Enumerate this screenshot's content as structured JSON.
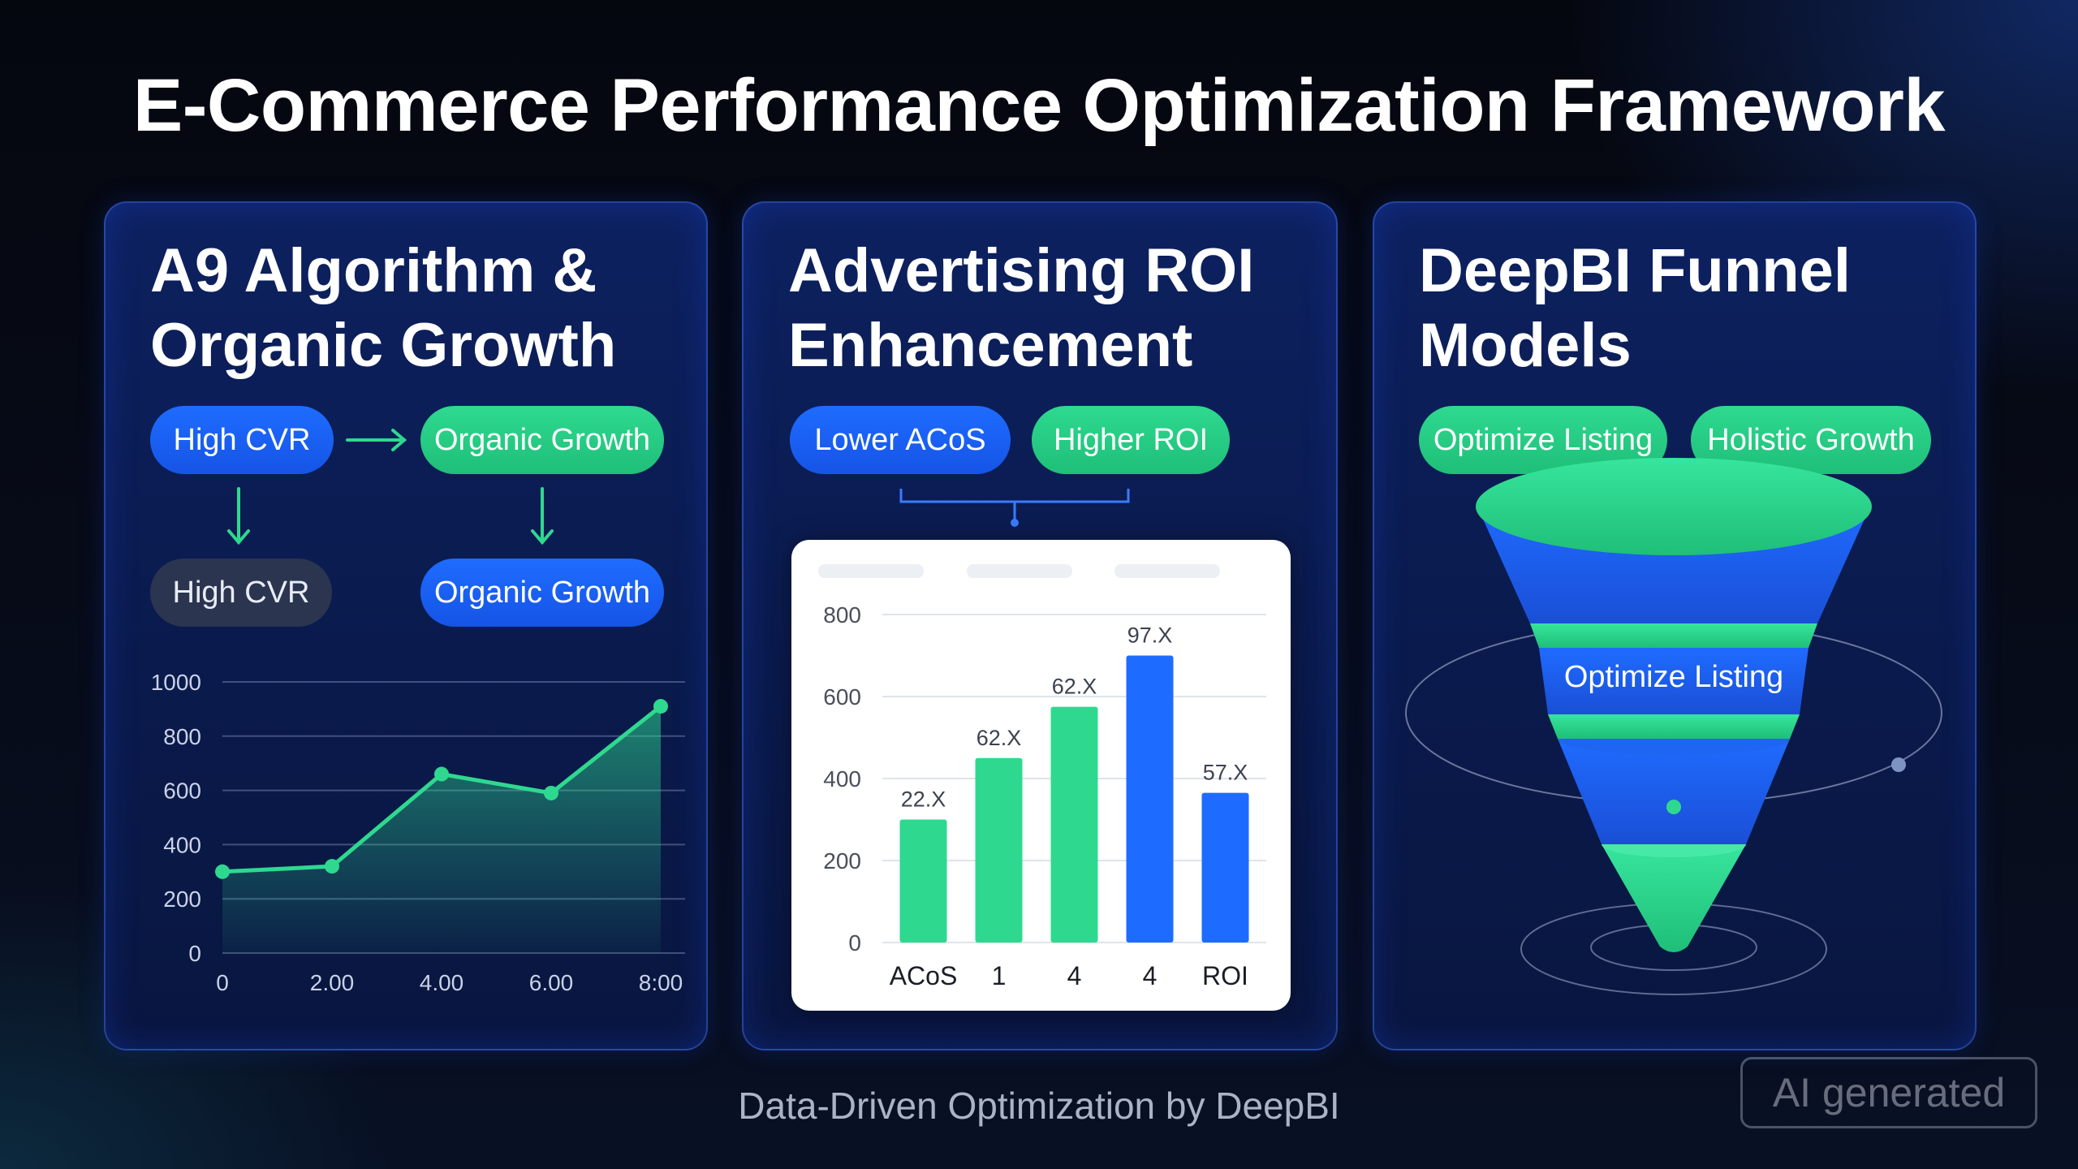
{
  "page": {
    "title": "E-Commerce Performance Optimization Framework",
    "footer": "Data-Driven Optimization by DeepBI",
    "badge": "AI generated"
  },
  "colors": {
    "accent_blue": "#1e6cff",
    "accent_green": "#2ed98f",
    "card_bg": "#0d2160",
    "pill_grey": "#2b3550"
  },
  "cards": [
    {
      "title_line1": "A9 Algorithm &",
      "title_line2": "Organic Growth",
      "pills": [
        "High CVR",
        "Organic Growth",
        "High CVR",
        "Organic Growth"
      ]
    },
    {
      "title_line1": "Advertising ROI",
      "title_line2": "Enhancement",
      "pills": [
        "Lower ACoS",
        "Higher ROI"
      ]
    },
    {
      "title_line1": "DeepBI Funnel",
      "title_line2": "Models",
      "pills": [
        "Optimize Listing",
        "Holistic Growth"
      ],
      "funnel_label": "Optimize Listing"
    }
  ],
  "chart_data": [
    {
      "type": "area",
      "title": "",
      "x": [
        0,
        1,
        2,
        3,
        4
      ],
      "x_tick_labels": [
        "0",
        "2.00",
        "4.00",
        "6.00",
        "8:00"
      ],
      "y_ticks": [
        0,
        200,
        400,
        600,
        800,
        1000
      ],
      "values": [
        300,
        320,
        660,
        590,
        910
      ],
      "ylim": [
        0,
        1000
      ],
      "grid": true,
      "line_color": "#2ed98f"
    },
    {
      "type": "bar",
      "title": "",
      "categories": [
        "ACoS",
        "1",
        "4",
        "4",
        "ROI"
      ],
      "values": [
        300,
        450,
        575,
        700,
        365
      ],
      "data_labels": [
        "22.X",
        "62.X",
        "62.X",
        "97.X",
        "57.X"
      ],
      "bar_colors": [
        "#2ed98f",
        "#2ed98f",
        "#2ed98f",
        "#1e6cff",
        "#1e6cff"
      ],
      "y_ticks": [
        0,
        200,
        400,
        600,
        800
      ],
      "ylim": [
        0,
        800
      ],
      "grid": true
    }
  ]
}
